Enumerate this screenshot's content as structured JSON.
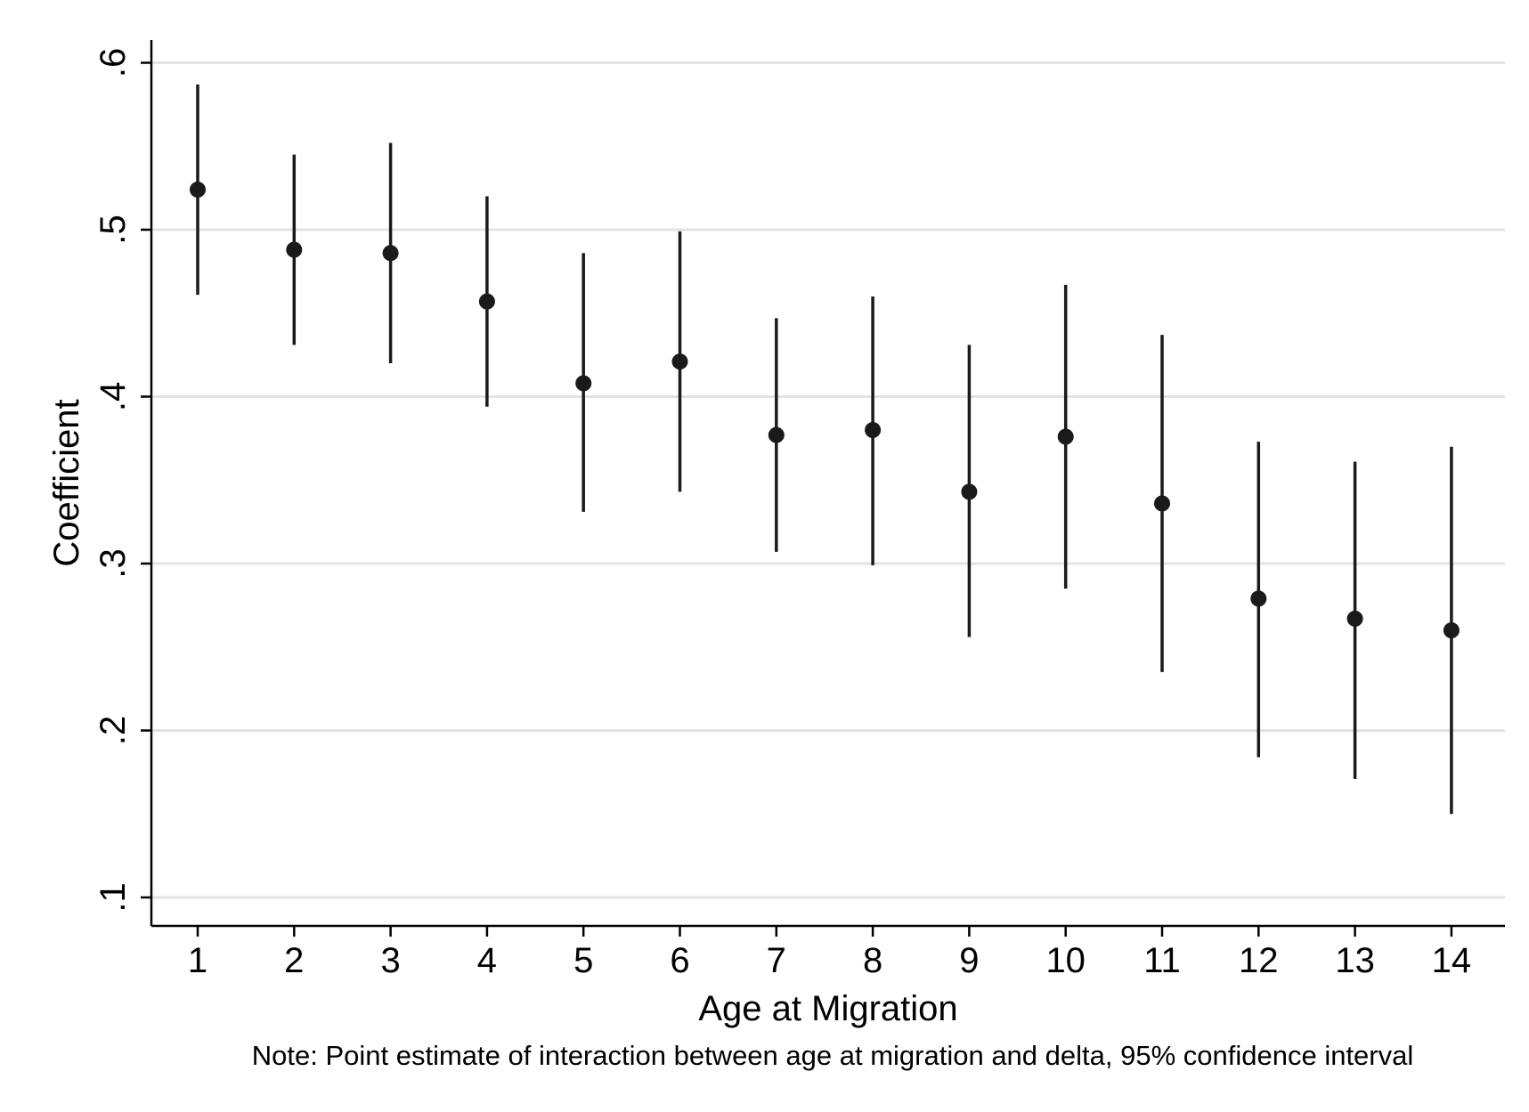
{
  "chart_data": {
    "type": "scatter",
    "subtype": "point-estimates-with-confidence-intervals",
    "xlabel": "Age at Migration",
    "ylabel": "Coefficient",
    "note": "Note: Point estimate of interaction between age at migration and delta, 95% confidence interval",
    "xlim": [
      0.5,
      14.5
    ],
    "ylim": [
      0.085,
      0.615
    ],
    "x_ticks": [
      1,
      2,
      3,
      4,
      5,
      6,
      7,
      8,
      9,
      10,
      11,
      12,
      13,
      14
    ],
    "x_tick_labels": [
      "1",
      "2",
      "3",
      "4",
      "5",
      "6",
      "7",
      "8",
      "9",
      "10",
      "11",
      "12",
      "13",
      "14"
    ],
    "y_ticks": [
      0.1,
      0.2,
      0.3,
      0.4,
      0.5,
      0.6
    ],
    "y_tick_labels": [
      ".1",
      ".2",
      ".3",
      ".4",
      ".5",
      ".6"
    ],
    "grid": true,
    "legend": "none",
    "colors": {
      "marker": "#1a1a1a",
      "grid": "#e3e3e3",
      "axis": "#000000"
    },
    "points": [
      {
        "x": 1,
        "y": 0.524,
        "lo": 0.461,
        "hi": 0.587
      },
      {
        "x": 2,
        "y": 0.488,
        "lo": 0.431,
        "hi": 0.545
      },
      {
        "x": 3,
        "y": 0.486,
        "lo": 0.42,
        "hi": 0.552
      },
      {
        "x": 4,
        "y": 0.457,
        "lo": 0.394,
        "hi": 0.52
      },
      {
        "x": 5,
        "y": 0.408,
        "lo": 0.331,
        "hi": 0.486
      },
      {
        "x": 6,
        "y": 0.421,
        "lo": 0.343,
        "hi": 0.499
      },
      {
        "x": 7,
        "y": 0.377,
        "lo": 0.307,
        "hi": 0.447
      },
      {
        "x": 8,
        "y": 0.38,
        "lo": 0.299,
        "hi": 0.46
      },
      {
        "x": 9,
        "y": 0.343,
        "lo": 0.256,
        "hi": 0.431
      },
      {
        "x": 10,
        "y": 0.376,
        "lo": 0.285,
        "hi": 0.467
      },
      {
        "x": 11,
        "y": 0.336,
        "lo": 0.235,
        "hi": 0.437
      },
      {
        "x": 12,
        "y": 0.279,
        "lo": 0.184,
        "hi": 0.373
      },
      {
        "x": 13,
        "y": 0.267,
        "lo": 0.171,
        "hi": 0.361
      },
      {
        "x": 14,
        "y": 0.26,
        "lo": 0.15,
        "hi": 0.37
      }
    ]
  }
}
